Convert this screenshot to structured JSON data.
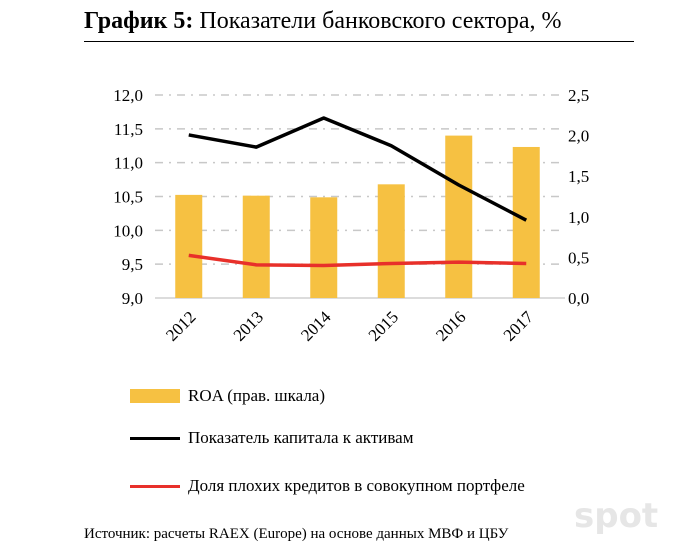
{
  "title_bold": "График 5:",
  "title_rest": " Показатели банковского сектора, %",
  "chart_data": {
    "type": "bar+line",
    "categories": [
      "2012",
      "2013",
      "2014",
      "2015",
      "2016",
      "2017"
    ],
    "left_axis": {
      "ylim": [
        9.0,
        12.0
      ],
      "ticks": [
        "9,0",
        "9,5",
        "10,0",
        "10,5",
        "11,0",
        "11,5",
        "12,0"
      ]
    },
    "right_axis": {
      "ylim": [
        0,
        2.5
      ],
      "ticks": [
        "0,0",
        "0,5",
        "1,0",
        "1,5",
        "2,0",
        "2,5"
      ]
    },
    "series": [
      {
        "name": "ROA (прав. шкала)",
        "type": "bar",
        "axis": "right",
        "color": "#F6C142",
        "values": [
          1.27,
          1.26,
          1.24,
          1.4,
          2.0,
          1.86
        ]
      },
      {
        "name": "Показатель капитала к активам",
        "type": "line",
        "axis": "left",
        "color": "#000000",
        "values": [
          11.41,
          11.23,
          11.66,
          11.25,
          10.67,
          10.15
        ]
      },
      {
        "name": "Доля плохих кредитов в совокупном портфеле",
        "type": "line",
        "axis": "left",
        "color": "#E8302A",
        "values": [
          9.63,
          9.49,
          9.48,
          9.51,
          9.53,
          9.51
        ]
      }
    ],
    "grid": true,
    "legend": "bottom"
  },
  "source": "Источник: расчеты RAEX (Europe) на основе данных МВФ и ЦБУ",
  "watermark": "spot"
}
